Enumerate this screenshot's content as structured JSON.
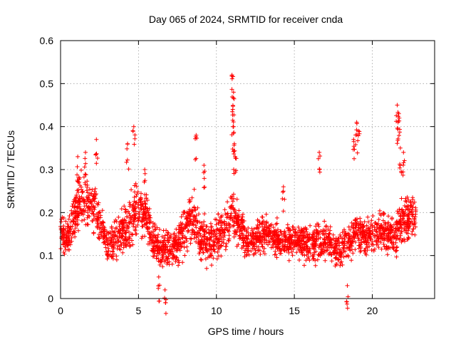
{
  "chart_data": {
    "type": "scatter",
    "title": "Day 065 of 2024, SRMTID for receiver cnda",
    "xlabel": "GPS time / hours",
    "ylabel": "SRMTID / TECUs",
    "xlim": [
      0,
      24
    ],
    "ylim": [
      0,
      0.6
    ],
    "x_ticks": [
      0,
      5,
      10,
      15,
      20
    ],
    "x_tick_labels": [
      "0",
      "5",
      "10",
      "15",
      "20"
    ],
    "y_ticks": [
      0,
      0.1,
      0.2,
      0.3,
      0.4,
      0.5,
      0.6
    ],
    "y_tick_labels": [
      "0",
      "0.1",
      "0.2",
      "0.3",
      "0.4",
      "0.5",
      "0.6"
    ],
    "grid": true,
    "marker": "plus",
    "color": "#ff0000",
    "series": [
      {
        "name": "SRMTID",
        "profile": {
          "x": [
            0.0,
            0.5,
            1.0,
            1.5,
            2.0,
            2.5,
            3.0,
            3.5,
            4.0,
            4.5,
            5.0,
            5.5,
            6.0,
            6.5,
            7.0,
            7.5,
            8.0,
            8.5,
            9.0,
            9.5,
            10.0,
            10.5,
            11.0,
            11.5,
            12.0,
            12.5,
            13.0,
            13.5,
            14.0,
            14.5,
            15.0,
            15.5,
            16.0,
            16.5,
            17.0,
            17.5,
            18.0,
            18.5,
            19.0,
            19.5,
            20.0,
            20.5,
            21.0,
            21.5,
            22.0,
            22.5,
            22.8
          ],
          "y_median": [
            0.16,
            0.14,
            0.21,
            0.23,
            0.22,
            0.19,
            0.12,
            0.14,
            0.15,
            0.18,
            0.21,
            0.19,
            0.13,
            0.11,
            0.12,
            0.13,
            0.16,
            0.2,
            0.14,
            0.13,
            0.14,
            0.16,
            0.2,
            0.16,
            0.13,
            0.14,
            0.15,
            0.15,
            0.14,
            0.13,
            0.14,
            0.13,
            0.12,
            0.13,
            0.13,
            0.12,
            0.12,
            0.13,
            0.16,
            0.14,
            0.15,
            0.16,
            0.15,
            0.15,
            0.18,
            0.19,
            0.19
          ],
          "y_spread": [
            0.05,
            0.04,
            0.06,
            0.06,
            0.06,
            0.05,
            0.04,
            0.05,
            0.05,
            0.07,
            0.06,
            0.05,
            0.04,
            0.04,
            0.05,
            0.05,
            0.05,
            0.06,
            0.05,
            0.05,
            0.05,
            0.05,
            0.06,
            0.05,
            0.04,
            0.04,
            0.04,
            0.04,
            0.04,
            0.04,
            0.04,
            0.04,
            0.04,
            0.04,
            0.04,
            0.04,
            0.04,
            0.04,
            0.05,
            0.04,
            0.04,
            0.05,
            0.04,
            0.05,
            0.06,
            0.05,
            0.05
          ]
        },
        "peaks": [
          {
            "x": 1.1,
            "y": 0.33
          },
          {
            "x": 1.6,
            "y": 0.34
          },
          {
            "x": 2.3,
            "y": 0.37
          },
          {
            "x": 4.3,
            "y": 0.36
          },
          {
            "x": 4.7,
            "y": 0.4
          },
          {
            "x": 5.4,
            "y": 0.3
          },
          {
            "x": 6.7,
            "y": 0.02
          },
          {
            "x": 6.3,
            "y": 0.05
          },
          {
            "x": 8.7,
            "y": 0.38
          },
          {
            "x": 9.2,
            "y": 0.31
          },
          {
            "x": 11.0,
            "y": 0.52
          },
          {
            "x": 11.1,
            "y": 0.48
          },
          {
            "x": 11.05,
            "y": 0.44
          },
          {
            "x": 11.1,
            "y": 0.4
          },
          {
            "x": 11.15,
            "y": 0.36
          },
          {
            "x": 11.2,
            "y": 0.33
          },
          {
            "x": 14.3,
            "y": 0.26
          },
          {
            "x": 16.6,
            "y": 0.34
          },
          {
            "x": 18.4,
            "y": 0.03
          },
          {
            "x": 18.8,
            "y": 0.37
          },
          {
            "x": 19.0,
            "y": 0.41
          },
          {
            "x": 19.1,
            "y": 0.39
          },
          {
            "x": 21.6,
            "y": 0.45
          },
          {
            "x": 21.7,
            "y": 0.43
          },
          {
            "x": 21.65,
            "y": 0.41
          },
          {
            "x": 21.8,
            "y": 0.35
          },
          {
            "x": 22.0,
            "y": 0.34
          }
        ]
      }
    ]
  }
}
